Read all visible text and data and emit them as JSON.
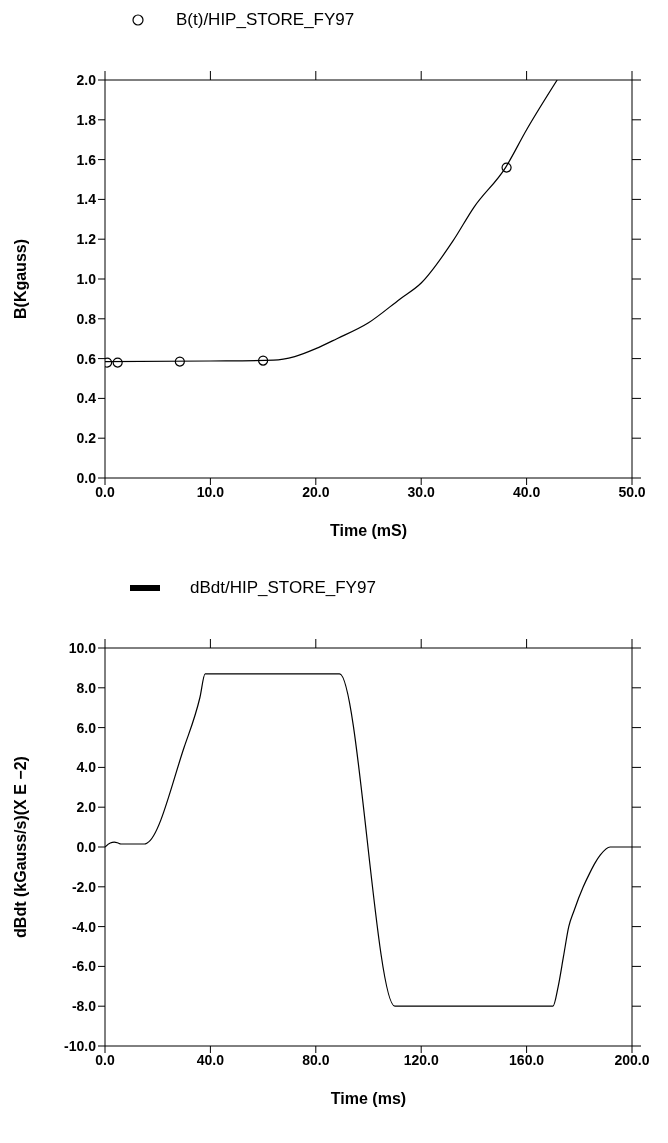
{
  "chart_data": [
    {
      "type": "line",
      "xlabel": "Time (mS)",
      "ylabel": "B(Kgauss)",
      "legend": "top",
      "grid": false,
      "line_style": "solid",
      "xlim": [
        0,
        50
      ],
      "ylim": [
        0,
        2
      ],
      "xticks": [
        {
          "value": 0,
          "label": "0.0"
        },
        {
          "value": 10,
          "label": "10.0"
        },
        {
          "value": 20,
          "label": "20.0"
        },
        {
          "value": 30,
          "label": "30.0"
        },
        {
          "value": 40,
          "label": "40.0"
        },
        {
          "value": 50,
          "label": "50.0"
        }
      ],
      "yticks": [
        {
          "value": 0,
          "label": "0.0"
        },
        {
          "value": 0.2,
          "label": "0.2"
        },
        {
          "value": 0.4,
          "label": "0.4"
        },
        {
          "value": 0.6,
          "label": "0.6"
        },
        {
          "value": 0.8,
          "label": "0.8"
        },
        {
          "value": 1,
          "label": "1.0"
        },
        {
          "value": 1.2,
          "label": "1.2"
        },
        {
          "value": 1.4,
          "label": "1.4"
        },
        {
          "value": 1.6,
          "label": "1.6"
        },
        {
          "value": 1.8,
          "label": "1.8"
        },
        {
          "value": 2,
          "label": "2.0"
        }
      ],
      "series": [
        {
          "name": "B(t)/HIP_STORE_FY97",
          "type": "scatter",
          "marker": "circle",
          "color": "#000000",
          "x": [
            0.2,
            1.2,
            7.1,
            15,
            38.1
          ],
          "values": [
            0.58,
            0.58,
            0.585,
            0.59,
            1.56
          ]
        },
        {
          "marker": "none",
          "color": "#000000",
          "x": [
            0,
            10,
            16,
            18,
            20,
            22,
            25,
            28,
            30,
            33,
            35,
            38,
            40,
            42.9
          ],
          "values": [
            0.585,
            0.588,
            0.592,
            0.61,
            0.65,
            0.7,
            0.78,
            0.9,
            0.98,
            1.19,
            1.36,
            1.56,
            1.75,
            2.0
          ]
        }
      ]
    },
    {
      "type": "line",
      "xlabel": "Time (ms)",
      "ylabel": "dBdt (kGauss/s)(X E −2)",
      "legend": "top",
      "grid": false,
      "line_style": "solid",
      "marker": "none",
      "xlim": [
        0,
        200
      ],
      "ylim": [
        -10,
        10
      ],
      "xticks": [
        {
          "value": 0,
          "label": "0.0"
        },
        {
          "value": 40,
          "label": "40.0"
        },
        {
          "value": 80,
          "label": "80.0"
        },
        {
          "value": 120,
          "label": "120.0"
        },
        {
          "value": 160,
          "label": "160.0"
        },
        {
          "value": 200,
          "label": "200.0"
        }
      ],
      "yticks": [
        {
          "value": -10,
          "label": "-10.0"
        },
        {
          "value": -8,
          "label": "-8.0"
        },
        {
          "value": -6,
          "label": "-6.0"
        },
        {
          "value": -4,
          "label": "-4.0"
        },
        {
          "value": -2,
          "label": "-2.0"
        },
        {
          "value": 0,
          "label": "0.0"
        },
        {
          "value": 2,
          "label": "2.0"
        },
        {
          "value": 4,
          "label": "4.0"
        },
        {
          "value": 6,
          "label": "6.0"
        },
        {
          "value": 8,
          "label": "8.0"
        },
        {
          "value": 10,
          "label": "10.0"
        }
      ],
      "series": [
        {
          "name": "dBdt/HIP_STORE_FY97",
          "color": "#000000",
          "x": [
            0,
            2,
            3.5,
            5,
            6,
            15,
            16,
            30,
            36,
            38,
            89,
            110,
            170,
            172,
            174,
            176,
            178,
            181.5,
            184,
            186,
            188,
            191.7,
            200
          ],
          "values": [
            0,
            0.2,
            0.25,
            0.2,
            0.15,
            0.15,
            0.2,
            5.0,
            7.5,
            8.7,
            8.7,
            -8.0,
            -8.0,
            -7.0,
            -5.5,
            -4.0,
            -3.2,
            -2.0,
            -1.3,
            -0.8,
            -0.4,
            0,
            0
          ]
        }
      ]
    }
  ]
}
